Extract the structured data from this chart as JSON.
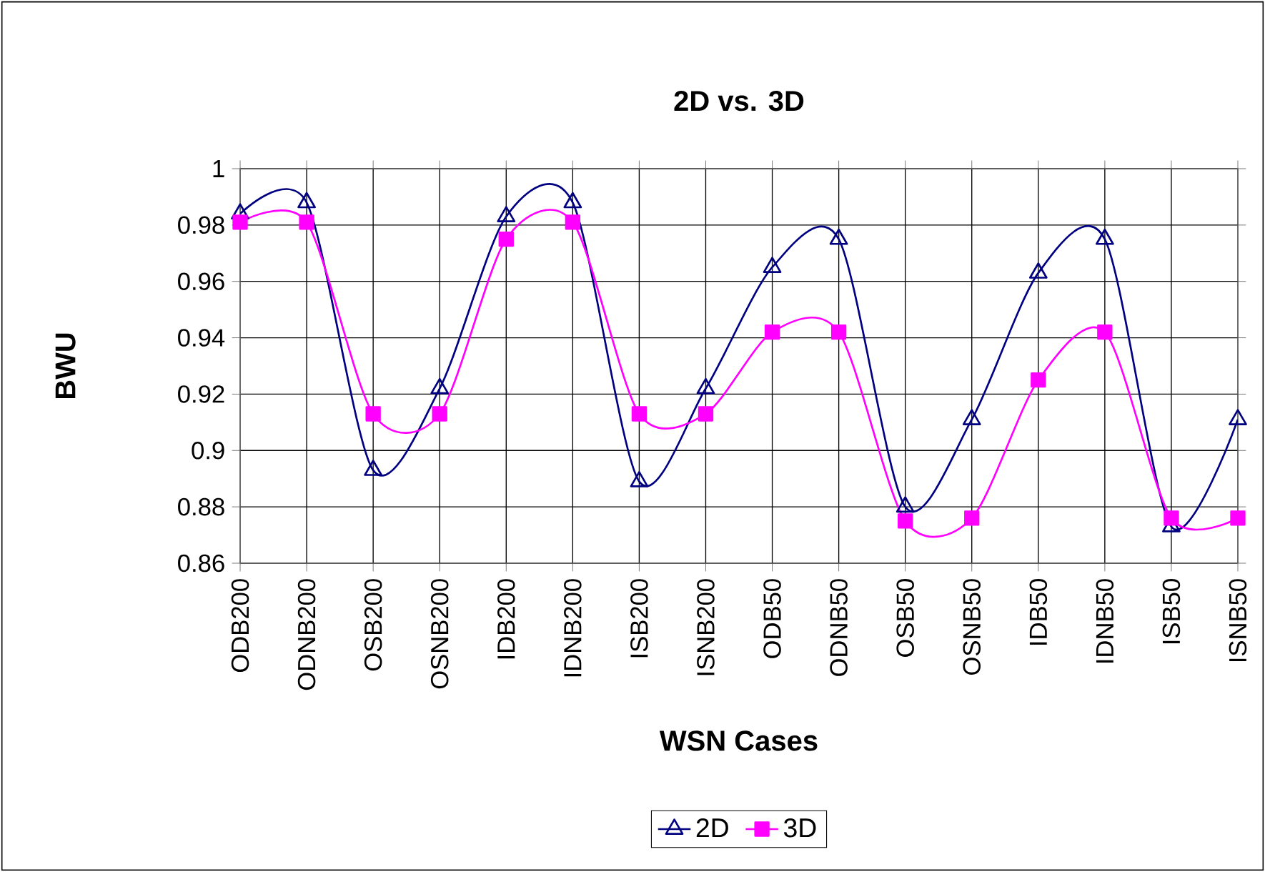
{
  "chart_data": {
    "type": "line",
    "title": "2D vs. 3D",
    "xlabel": "WSN Cases",
    "ylabel": "BWU",
    "categories": [
      "ODB200",
      "ODNB200",
      "OSB200",
      "OSNB200",
      "IDB200",
      "IDNB200",
      "ISB200",
      "ISNB200",
      "ODB50",
      "ODNB50",
      "OSB50",
      "OSNB50",
      "IDB50",
      "IDNB50",
      "ISB50",
      "ISNB50"
    ],
    "series": [
      {
        "name": "2D",
        "color": "#000080",
        "marker": "triangle",
        "values": [
          0.984,
          0.988,
          0.893,
          0.922,
          0.983,
          0.988,
          0.889,
          0.922,
          0.965,
          0.975,
          0.88,
          0.911,
          0.963,
          0.975,
          0.873,
          0.911
        ]
      },
      {
        "name": "3D",
        "color": "#ff00ff",
        "marker": "square",
        "values": [
          0.981,
          0.981,
          0.913,
          0.913,
          0.975,
          0.981,
          0.913,
          0.913,
          0.942,
          0.942,
          0.875,
          0.876,
          0.925,
          0.942,
          0.876,
          0.876
        ]
      }
    ],
    "ylim": [
      0.86,
      1
    ],
    "yticks": [
      0.86,
      0.88,
      0.9,
      0.92,
      0.94,
      0.96,
      0.98,
      1
    ],
    "grid": true,
    "legend": "bottom"
  }
}
